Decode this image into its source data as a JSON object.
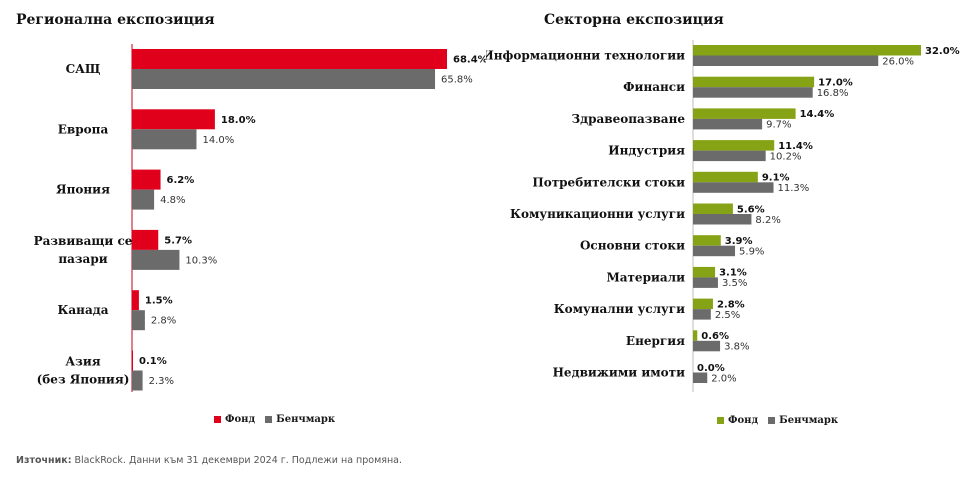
{
  "left_panel": {
    "title": "Регионална експозиция"
  },
  "right_panel": {
    "title": "Секторна експозиция"
  },
  "legend": {
    "fund": "Фонд",
    "benchmark": "Бенчмарк"
  },
  "source": {
    "label": "Източник:",
    "text": " BlackRock. Данни към 31 декември 2024 г. Подлежи на промяна."
  },
  "colors": {
    "fund_regional": "#e0001b",
    "fund_sector": "#86a315",
    "benchmark": "#6b6b6b",
    "axis": "#c0001b"
  },
  "chart_data": [
    {
      "type": "bar",
      "orientation": "horizontal",
      "title": "Регионална експозиция",
      "categories": [
        [
          "САЩ"
        ],
        [
          "Европа"
        ],
        [
          "Япония"
        ],
        [
          "Развиващи се",
          "пазари"
        ],
        [
          "Канада"
        ],
        [
          "Азия",
          "(без Япония)"
        ]
      ],
      "series": [
        {
          "name": "Фонд",
          "values": [
            68.4,
            18.0,
            6.2,
            5.7,
            1.5,
            0.1
          ],
          "labels": [
            "68.4%",
            "18.0%",
            "6.2%",
            "5.7%",
            "1.5%",
            "0.1%"
          ]
        },
        {
          "name": "Бенчмарк",
          "values": [
            65.8,
            14.0,
            4.8,
            10.3,
            2.8,
            2.3
          ],
          "labels": [
            "65.8%",
            "14.0%",
            "4.8%",
            "10.3%",
            "2.8%",
            "2.3%"
          ]
        }
      ],
      "xlim": [
        0,
        68.4
      ],
      "legend_position": "bottom"
    },
    {
      "type": "bar",
      "orientation": "horizontal",
      "title": "Секторна експозиция",
      "categories": [
        [
          "Информационни технологии"
        ],
        [
          "Финанси"
        ],
        [
          "Здравеопазване"
        ],
        [
          "Индустрия"
        ],
        [
          "Потребителски стоки"
        ],
        [
          "Комуникационни услуги"
        ],
        [
          "Основни стоки"
        ],
        [
          "Материали"
        ],
        [
          "Комунални услуги"
        ],
        [
          "Енергия"
        ],
        [
          "Недвижими имоти"
        ]
      ],
      "series": [
        {
          "name": "Фонд",
          "values": [
            32.0,
            17.0,
            14.4,
            11.4,
            9.1,
            5.6,
            3.9,
            3.1,
            2.8,
            0.6,
            0.0
          ],
          "labels": [
            "32.0%",
            "17.0%",
            "14.4%",
            "11.4%",
            "9.1%",
            "5.6%",
            "3.9%",
            "3.1%",
            "2.8%",
            "0.6%",
            "0.0%"
          ]
        },
        {
          "name": "Бенчмарк",
          "values": [
            26.0,
            16.8,
            9.7,
            10.2,
            11.3,
            8.2,
            5.9,
            3.5,
            2.5,
            3.8,
            2.0
          ],
          "labels": [
            "26.0%",
            "16.8%",
            "9.7%",
            "10.2%",
            "11.3%",
            "8.2%",
            "5.9%",
            "3.5%",
            "2.5%",
            "3.8%",
            "2.0%"
          ]
        }
      ],
      "xlim": [
        0,
        32.0
      ],
      "legend_position": "bottom"
    }
  ]
}
